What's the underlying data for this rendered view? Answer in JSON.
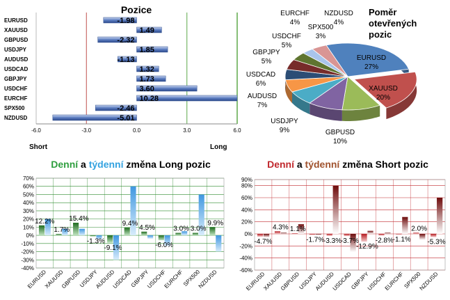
{
  "chart_data": [
    {
      "type": "bar",
      "title": "Pozice",
      "orientation": "horizontal",
      "categories": [
        "EURUSD",
        "XAUUSD",
        "GBPUSD",
        "USDJPY",
        "AUDUSD",
        "USDCAD",
        "GBPJPY",
        "USDCHF",
        "EURCHF",
        "SPX500",
        "NZDUSD"
      ],
      "values": [
        -1.98,
        1.49,
        -2.32,
        1.85,
        -1.13,
        1.32,
        1.73,
        3.6,
        10.28,
        -2.46,
        -5.01
      ],
      "value_labels": [
        "-1.98",
        "1.49",
        "-2.32",
        "1.85",
        "-1.13",
        "1.32",
        "1.73",
        "3.60",
        "10.28",
        "-2.46",
        "-5.01"
      ],
      "xlim": [
        -6.0,
        6.0
      ],
      "xticks": [
        "-6.0",
        "-3.0",
        "0.0",
        "3.0",
        "6.0"
      ],
      "left_label": "Short",
      "right_label": "Long",
      "colors": {
        "bar": "#4f6fb5",
        "short_line": "#c0504d",
        "long_line": "#5fa84a"
      }
    },
    {
      "type": "pie",
      "title_lines": [
        "Poměr",
        "otevřených",
        "pozic"
      ],
      "slices": [
        {
          "label": "EURUSD",
          "pct": "27%",
          "value": 27,
          "color": "#4f81bd"
        },
        {
          "label": "XAUUSD",
          "pct": "20%",
          "value": 20,
          "color": "#c0504d"
        },
        {
          "label": "GBPUSD",
          "pct": "10%",
          "value": 10,
          "color": "#9bbb59"
        },
        {
          "label": "USDJPY",
          "pct": "9%",
          "value": 9,
          "color": "#8064a2"
        },
        {
          "label": "AUDUSD",
          "pct": "7%",
          "value": 7,
          "color": "#4bacc6"
        },
        {
          "label": "USDCAD",
          "pct": "6%",
          "value": 6,
          "color": "#f79646"
        },
        {
          "label": "GBPJPY",
          "pct": "5%",
          "value": 5,
          "color": "#2c4d75"
        },
        {
          "label": "USDCHF",
          "pct": "5%",
          "value": 5,
          "color": "#772c2a"
        },
        {
          "label": "EURCHF",
          "pct": "4%",
          "value": 4,
          "color": "#5f7530"
        },
        {
          "label": "SPX500",
          "pct": "3%",
          "value": 3,
          "color": "#a9c4eb"
        },
        {
          "label": "NZDUSD",
          "pct": "4%",
          "value": 4,
          "color": "#d99594"
        }
      ]
    },
    {
      "type": "bar",
      "title_parts": [
        "Denní",
        " a ",
        "týdenní",
        " změna Long pozic"
      ],
      "title_colors": [
        "#2e9e3e",
        "#000000",
        "#33a2e0",
        "#000000"
      ],
      "categories": [
        "EURUSD",
        "XAUUSD",
        "GBPUSD",
        "USDJPY",
        "AUDUSD",
        "USDCAD",
        "GBPJPY",
        "USDCHF",
        "EURCHF",
        "SPX500",
        "NZDUSD"
      ],
      "series": [
        {
          "name": "Denní",
          "values": [
            12.2,
            1.7,
            15.4,
            -1.3,
            -9.1,
            9.4,
            4.5,
            -6.0,
            3.0,
            3.0,
            9.9
          ],
          "color": "#2e8b2e"
        },
        {
          "name": "týdenní",
          "values": [
            20,
            8,
            8,
            -5,
            -30,
            60,
            -4,
            -13,
            5,
            50,
            -20
          ],
          "color": "#4da6e8"
        }
      ],
      "data_labels": [
        "12.2%",
        "1.7%",
        "15.4%",
        "-1.3%",
        "-9.1%",
        "9.4%",
        "4.5%",
        "-6.0%",
        "3.0%",
        "3.0%",
        "9.9%"
      ],
      "ylim": [
        -40,
        70
      ],
      "yticks": [
        "70%",
        "60%",
        "50%",
        "40%",
        "30%",
        "20%",
        "10%",
        "0%",
        "-10%",
        "-20%",
        "-30%",
        "-40%"
      ],
      "colors": {
        "grid": "#2e8b2e"
      }
    },
    {
      "type": "bar",
      "title_parts": [
        "Denní",
        " a ",
        "týdenní",
        " změna Short pozic"
      ],
      "title_colors": [
        "#c0282d",
        "#000000",
        "#a0522d",
        "#000000"
      ],
      "categories": [
        "EURUSD",
        "XAUUSD",
        "GBPUSD",
        "USDJPY",
        "AUDUSD",
        "USDCAD",
        "GBPJPY",
        "USDCHF",
        "EURCHF",
        "SPX500",
        "NZDUSD"
      ],
      "series": [
        {
          "name": "Denní",
          "values": [
            -4.7,
            4.3,
            1.1,
            -1.7,
            -3.3,
            -3.7,
            -12.9,
            -2.8,
            -1.1,
            2.0,
            -5.3
          ],
          "color": "#c0282d"
        },
        {
          "name": "týdenní",
          "values": [
            -6,
            2,
            16,
            -2,
            80,
            -30,
            5,
            2,
            28,
            -10,
            60
          ],
          "color": "#7a1010"
        }
      ],
      "data_labels": [
        "-4.7%",
        "4.3%",
        "1.1%",
        "-1.7%",
        "-3.3%",
        "-3.7%",
        "-12.9%",
        "-2.8%",
        "-1.1%",
        "2.0%",
        "-5.3%"
      ],
      "ylim": [
        -60,
        90
      ],
      "yticks": [
        "90%",
        "80%",
        "60%",
        "40%",
        "20%",
        "0%",
        "-20%",
        "-40%",
        "-60%"
      ],
      "colors": {
        "grid": "#c0282d"
      }
    }
  ]
}
